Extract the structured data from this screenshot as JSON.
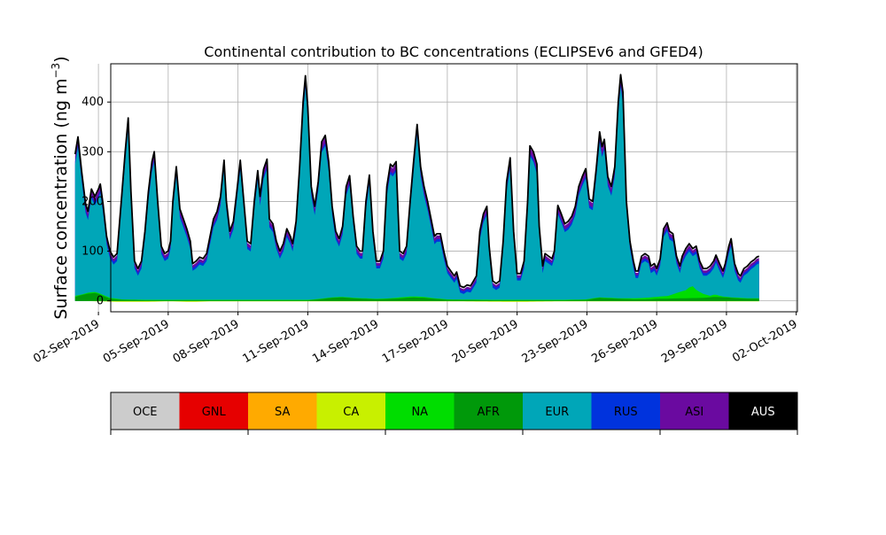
{
  "chart_data": {
    "type": "area",
    "title": "Continental contribution to BC concentrations (ECLIPSEv6 and GFED4)",
    "xlabel": "",
    "ylabel_main": "Surface concentration (ng m",
    "ylabel_sup": "−3",
    "ylabel_close": ")",
    "grid": true,
    "stacked": true,
    "x_unit": "days since 01-Sep-2019 00:00",
    "xlim": [
      1.53,
      31.05
    ],
    "ylim": [
      -22,
      477
    ],
    "y_ticks": [
      0,
      100,
      200,
      300,
      400
    ],
    "x_tick_positions": [
      1,
      4,
      7,
      10,
      13,
      16,
      19,
      22,
      25,
      28,
      31
    ],
    "x_tick_labels": [
      "02-Sep-2019",
      "05-Sep-2019",
      "08-Sep-2019",
      "11-Sep-2019",
      "14-Sep-2019",
      "17-Sep-2019",
      "20-Sep-2019",
      "23-Sep-2019",
      "26-Sep-2019",
      "29-Sep-2019",
      "02-Oct-2019"
    ],
    "total": {
      "name": "AUS",
      "color": "#000000",
      "points": [
        [
          0.0,
          295
        ],
        [
          0.12,
          330
        ],
        [
          0.28,
          260
        ],
        [
          0.45,
          195
        ],
        [
          0.55,
          180
        ],
        [
          0.7,
          225
        ],
        [
          0.85,
          210
        ],
        [
          1.0,
          225
        ],
        [
          1.08,
          235
        ],
        [
          1.2,
          195
        ],
        [
          1.35,
          130
        ],
        [
          1.5,
          100
        ],
        [
          1.65,
          88
        ],
        [
          1.8,
          95
        ],
        [
          2.0,
          210
        ],
        [
          2.15,
          300
        ],
        [
          2.28,
          368
        ],
        [
          2.4,
          220
        ],
        [
          2.55,
          80
        ],
        [
          2.7,
          65
        ],
        [
          2.85,
          80
        ],
        [
          3.0,
          140
        ],
        [
          3.15,
          220
        ],
        [
          3.3,
          280
        ],
        [
          3.4,
          300
        ],
        [
          3.55,
          200
        ],
        [
          3.7,
          110
        ],
        [
          3.85,
          95
        ],
        [
          4.0,
          100
        ],
        [
          4.1,
          120
        ],
        [
          4.2,
          200
        ],
        [
          4.35,
          270
        ],
        [
          4.5,
          185
        ],
        [
          4.65,
          165
        ],
        [
          4.8,
          145
        ],
        [
          4.95,
          120
        ],
        [
          5.05,
          75
        ],
        [
          5.2,
          80
        ],
        [
          5.35,
          88
        ],
        [
          5.5,
          85
        ],
        [
          5.65,
          95
        ],
        [
          5.8,
          130
        ],
        [
          5.95,
          165
        ],
        [
          6.1,
          180
        ],
        [
          6.25,
          210
        ],
        [
          6.4,
          283
        ],
        [
          6.5,
          200
        ],
        [
          6.65,
          140
        ],
        [
          6.8,
          160
        ],
        [
          6.95,
          220
        ],
        [
          7.1,
          283
        ],
        [
          7.25,
          200
        ],
        [
          7.4,
          120
        ],
        [
          7.55,
          115
        ],
        [
          7.7,
          200
        ],
        [
          7.85,
          262
        ],
        [
          7.95,
          210
        ],
        [
          8.1,
          265
        ],
        [
          8.25,
          285
        ],
        [
          8.35,
          165
        ],
        [
          8.5,
          155
        ],
        [
          8.65,
          120
        ],
        [
          8.8,
          100
        ],
        [
          8.95,
          115
        ],
        [
          9.1,
          145
        ],
        [
          9.25,
          130
        ],
        [
          9.35,
          115
        ],
        [
          9.5,
          160
        ],
        [
          9.65,
          270
        ],
        [
          9.8,
          400
        ],
        [
          9.9,
          453
        ],
        [
          10.0,
          390
        ],
        [
          10.15,
          230
        ],
        [
          10.3,
          190
        ],
        [
          10.45,
          240
        ],
        [
          10.6,
          320
        ],
        [
          10.75,
          333
        ],
        [
          10.9,
          280
        ],
        [
          11.05,
          190
        ],
        [
          11.2,
          140
        ],
        [
          11.35,
          125
        ],
        [
          11.5,
          150
        ],
        [
          11.65,
          230
        ],
        [
          11.8,
          252
        ],
        [
          11.95,
          170
        ],
        [
          12.1,
          110
        ],
        [
          12.25,
          100
        ],
        [
          12.35,
          100
        ],
        [
          12.5,
          200
        ],
        [
          12.65,
          253
        ],
        [
          12.8,
          140
        ],
        [
          12.95,
          80
        ],
        [
          13.1,
          80
        ],
        [
          13.25,
          100
        ],
        [
          13.4,
          230
        ],
        [
          13.55,
          275
        ],
        [
          13.65,
          270
        ],
        [
          13.8,
          280
        ],
        [
          13.95,
          100
        ],
        [
          14.1,
          95
        ],
        [
          14.25,
          110
        ],
        [
          14.4,
          200
        ],
        [
          14.55,
          280
        ],
        [
          14.7,
          355
        ],
        [
          14.85,
          270
        ],
        [
          15.0,
          230
        ],
        [
          15.15,
          200
        ],
        [
          15.3,
          165
        ],
        [
          15.45,
          130
        ],
        [
          15.55,
          135
        ],
        [
          15.7,
          135
        ],
        [
          15.85,
          100
        ],
        [
          16.0,
          70
        ],
        [
          16.15,
          60
        ],
        [
          16.3,
          50
        ],
        [
          16.4,
          58
        ],
        [
          16.55,
          30
        ],
        [
          16.7,
          27
        ],
        [
          16.85,
          32
        ],
        [
          17.0,
          30
        ],
        [
          17.1,
          38
        ],
        [
          17.25,
          50
        ],
        [
          17.4,
          140
        ],
        [
          17.55,
          175
        ],
        [
          17.7,
          190
        ],
        [
          17.8,
          110
        ],
        [
          17.95,
          40
        ],
        [
          18.1,
          35
        ],
        [
          18.25,
          40
        ],
        [
          18.4,
          120
        ],
        [
          18.55,
          240
        ],
        [
          18.7,
          288
        ],
        [
          18.85,
          140
        ],
        [
          19.0,
          55
        ],
        [
          19.15,
          55
        ],
        [
          19.3,
          80
        ],
        [
          19.45,
          200
        ],
        [
          19.55,
          312
        ],
        [
          19.7,
          300
        ],
        [
          19.85,
          275
        ],
        [
          19.95,
          150
        ],
        [
          20.1,
          70
        ],
        [
          20.2,
          95
        ],
        [
          20.35,
          90
        ],
        [
          20.5,
          85
        ],
        [
          20.6,
          100
        ],
        [
          20.75,
          192
        ],
        [
          20.9,
          175
        ],
        [
          21.05,
          155
        ],
        [
          21.2,
          160
        ],
        [
          21.35,
          170
        ],
        [
          21.5,
          190
        ],
        [
          21.65,
          230
        ],
        [
          21.8,
          250
        ],
        [
          21.95,
          266
        ],
        [
          22.1,
          205
        ],
        [
          22.25,
          200
        ],
        [
          22.4,
          265
        ],
        [
          22.55,
          340
        ],
        [
          22.65,
          310
        ],
        [
          22.75,
          325
        ],
        [
          22.9,
          250
        ],
        [
          23.05,
          230
        ],
        [
          23.2,
          270
        ],
        [
          23.35,
          400
        ],
        [
          23.45,
          455
        ],
        [
          23.55,
          420
        ],
        [
          23.7,
          200
        ],
        [
          23.85,
          120
        ],
        [
          24.0,
          80
        ],
        [
          24.1,
          60
        ],
        [
          24.2,
          60
        ],
        [
          24.35,
          90
        ],
        [
          24.5,
          95
        ],
        [
          24.65,
          90
        ],
        [
          24.75,
          70
        ],
        [
          24.9,
          75
        ],
        [
          25.0,
          65
        ],
        [
          25.15,
          85
        ],
        [
          25.3,
          145
        ],
        [
          25.45,
          157
        ],
        [
          25.55,
          140
        ],
        [
          25.7,
          135
        ],
        [
          25.85,
          90
        ],
        [
          26.0,
          70
        ],
        [
          26.1,
          90
        ],
        [
          26.25,
          105
        ],
        [
          26.4,
          115
        ],
        [
          26.55,
          105
        ],
        [
          26.7,
          110
        ],
        [
          26.85,
          80
        ],
        [
          27.0,
          65
        ],
        [
          27.15,
          65
        ],
        [
          27.3,
          70
        ],
        [
          27.45,
          80
        ],
        [
          27.55,
          92
        ],
        [
          27.7,
          75
        ],
        [
          27.85,
          60
        ],
        [
          27.95,
          75
        ],
        [
          28.1,
          110
        ],
        [
          28.2,
          125
        ],
        [
          28.35,
          75
        ],
        [
          28.5,
          55
        ],
        [
          28.6,
          50
        ],
        [
          28.75,
          65
        ],
        [
          28.9,
          70
        ],
        [
          29.05,
          78
        ],
        [
          29.2,
          83
        ],
        [
          29.3,
          88
        ],
        [
          29.4,
          90
        ]
      ]
    },
    "series": [
      {
        "name": "EUR",
        "color": "#00A6B8",
        "role": "main"
      },
      {
        "name": "RUS",
        "color": "#0033DD",
        "role": "band"
      },
      {
        "name": "ASI",
        "color": "#6A0AA0",
        "role": "band"
      },
      {
        "name": "AUS",
        "color": "#000000",
        "role": "outline"
      },
      {
        "name": "AFR",
        "color": "#00990A",
        "points": [
          [
            0.0,
            8
          ],
          [
            0.3,
            12
          ],
          [
            0.6,
            15
          ],
          [
            0.9,
            16
          ],
          [
            1.2,
            10
          ],
          [
            1.5,
            4
          ],
          [
            2.0,
            2
          ],
          [
            3.0,
            1
          ],
          [
            5.0,
            1
          ],
          [
            7.0,
            1
          ],
          [
            10.0,
            1
          ],
          [
            10.5,
            3
          ],
          [
            11.0,
            6
          ],
          [
            11.5,
            7
          ],
          [
            12.0,
            5
          ],
          [
            12.5,
            4
          ],
          [
            13.0,
            3
          ],
          [
            13.5,
            4
          ],
          [
            14.0,
            5
          ],
          [
            14.5,
            7
          ],
          [
            15.0,
            6
          ],
          [
            15.5,
            4
          ],
          [
            16.0,
            2
          ],
          [
            18.0,
            1
          ],
          [
            20.0,
            1
          ],
          [
            21.0,
            1
          ],
          [
            22.0,
            2
          ],
          [
            22.5,
            6
          ],
          [
            23.0,
            5
          ],
          [
            23.5,
            4
          ],
          [
            24.0,
            3
          ],
          [
            24.5,
            3
          ],
          [
            25.0,
            4
          ],
          [
            26.0,
            5
          ],
          [
            27.0,
            6
          ],
          [
            27.5,
            8
          ],
          [
            28.0,
            7
          ],
          [
            28.5,
            5
          ],
          [
            29.0,
            4
          ],
          [
            29.4,
            4
          ]
        ]
      },
      {
        "name": "NA",
        "color": "#00DD00",
        "points": [
          [
            0.0,
            10
          ],
          [
            0.3,
            13
          ],
          [
            0.6,
            17
          ],
          [
            0.9,
            18
          ],
          [
            1.2,
            12
          ],
          [
            1.5,
            6
          ],
          [
            2.0,
            3
          ],
          [
            3.0,
            2
          ],
          [
            5.0,
            2
          ],
          [
            7.0,
            2
          ],
          [
            10.0,
            2
          ],
          [
            10.5,
            4
          ],
          [
            11.0,
            7
          ],
          [
            11.5,
            8
          ],
          [
            12.0,
            6
          ],
          [
            12.5,
            5
          ],
          [
            13.0,
            4
          ],
          [
            13.5,
            5
          ],
          [
            14.0,
            7
          ],
          [
            14.5,
            9
          ],
          [
            15.0,
            8
          ],
          [
            15.5,
            5
          ],
          [
            16.0,
            3
          ],
          [
            18.0,
            2
          ],
          [
            20.0,
            2
          ],
          [
            21.0,
            2
          ],
          [
            22.0,
            3
          ],
          [
            22.5,
            7
          ],
          [
            23.0,
            6
          ],
          [
            23.5,
            5
          ],
          [
            24.0,
            5
          ],
          [
            24.5,
            6
          ],
          [
            25.0,
            8
          ],
          [
            25.5,
            10
          ],
          [
            26.0,
            18
          ],
          [
            26.3,
            22
          ],
          [
            26.5,
            32
          ],
          [
            26.7,
            22
          ],
          [
            27.0,
            14
          ],
          [
            27.3,
            10
          ],
          [
            27.5,
            13
          ],
          [
            27.8,
            9
          ],
          [
            28.2,
            7
          ],
          [
            28.6,
            6
          ],
          [
            29.0,
            5
          ],
          [
            29.4,
            5
          ]
        ]
      },
      {
        "name": "CA",
        "color": "#C8F000",
        "points": [
          [
            0.0,
            0
          ],
          [
            1.0,
            -1
          ],
          [
            2.0,
            -2
          ],
          [
            3.0,
            -2
          ],
          [
            4.0,
            -1
          ],
          [
            5.0,
            -2
          ],
          [
            6.0,
            -1
          ],
          [
            8.0,
            -1
          ],
          [
            10.0,
            -1
          ],
          [
            13.0,
            -1
          ],
          [
            16.0,
            -1
          ],
          [
            19.0,
            -2
          ],
          [
            21.0,
            -1
          ],
          [
            23.0,
            -1
          ],
          [
            25.0,
            -1
          ],
          [
            27.0,
            -1
          ],
          [
            29.4,
            -1
          ]
        ]
      }
    ]
  },
  "legend": {
    "items": [
      {
        "label": "OCE",
        "color": "#CCCCCC"
      },
      {
        "label": "GNL",
        "color": "#E60000"
      },
      {
        "label": "SA",
        "color": "#FFAA00"
      },
      {
        "label": "CA",
        "color": "#C8F000"
      },
      {
        "label": "NA",
        "color": "#00DD00"
      },
      {
        "label": "AFR",
        "color": "#00990A"
      },
      {
        "label": "EUR",
        "color": "#00A6B8"
      },
      {
        "label": "RUS",
        "color": "#0033DD"
      },
      {
        "label": "ASI",
        "color": "#6A0AA0"
      },
      {
        "label": "AUS",
        "color": "#000000",
        "text_color": "#FFFFFF"
      }
    ]
  }
}
